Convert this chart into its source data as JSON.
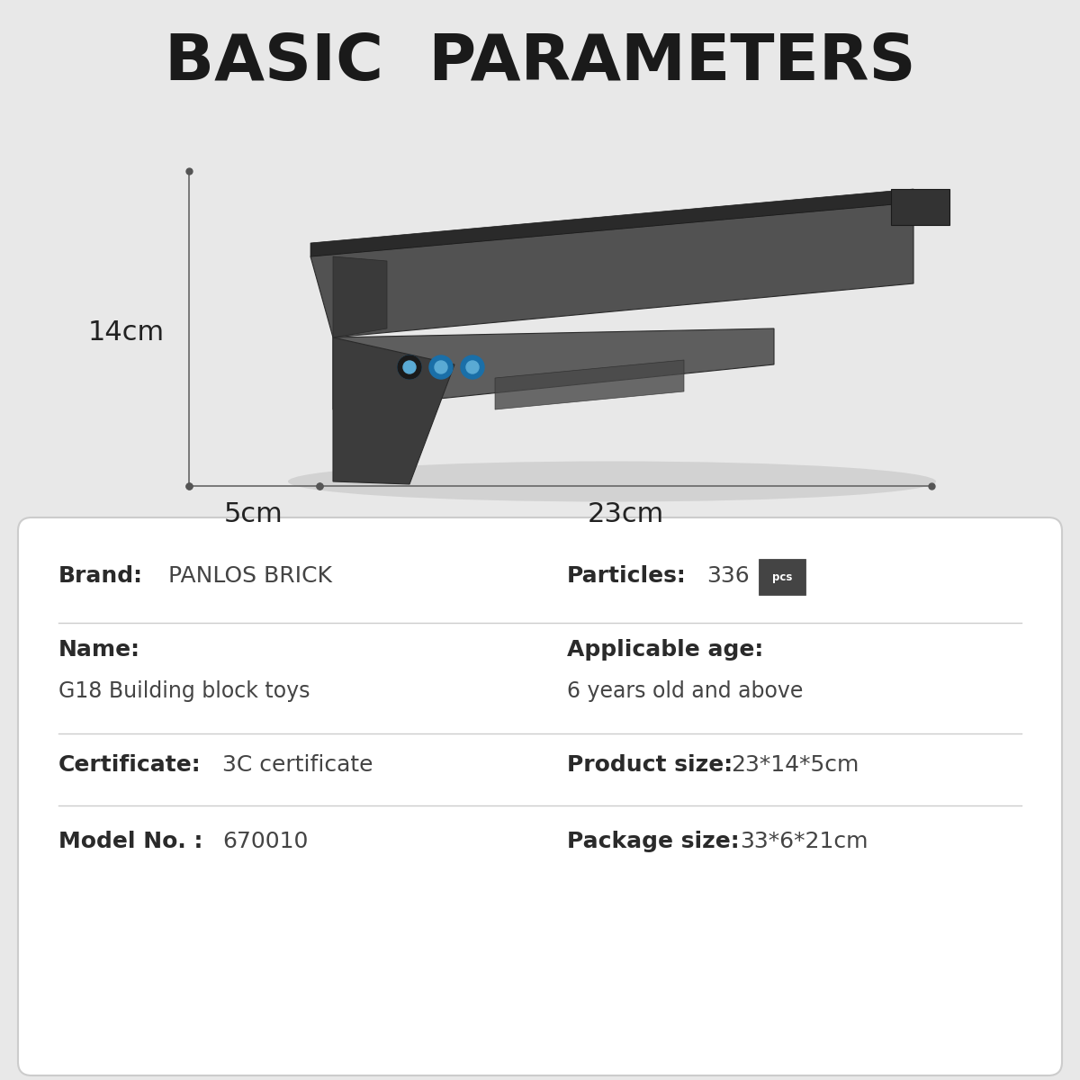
{
  "title": "BASIC  PARAMETERS",
  "bg_color": "#e8e8e8",
  "card_color": "#ffffff",
  "title_color": "#1a1a1a",
  "title_fontsize": 52,
  "dim_14cm": "14cm",
  "dim_5cm": "5cm",
  "dim_23cm": "23cm",
  "rows": [
    {
      "left_label": "Brand:",
      "left_value": "PANLOS BRICK",
      "right_label": "Particles:",
      "right_value": "336",
      "right_extra": "pcs",
      "two_line": false
    },
    {
      "left_label": "Name:",
      "left_value": "G18 Building block toys",
      "right_label": "Applicable age:",
      "right_value": "6 years old and above",
      "two_line": true
    },
    {
      "left_label": "Certificate:",
      "left_value": "3C certificate",
      "right_label": "Product size:",
      "right_value": "23*14*5cm",
      "two_line": false
    },
    {
      "left_label": "Model No. :",
      "left_value": "670010",
      "right_label": "Package size:",
      "right_value": "33*6*21cm",
      "two_line": false
    }
  ],
  "label_color": "#2a2a2a",
  "value_color": "#444444",
  "line_color": "#cccccc",
  "label_fontsize": 18,
  "value_fontsize": 17
}
